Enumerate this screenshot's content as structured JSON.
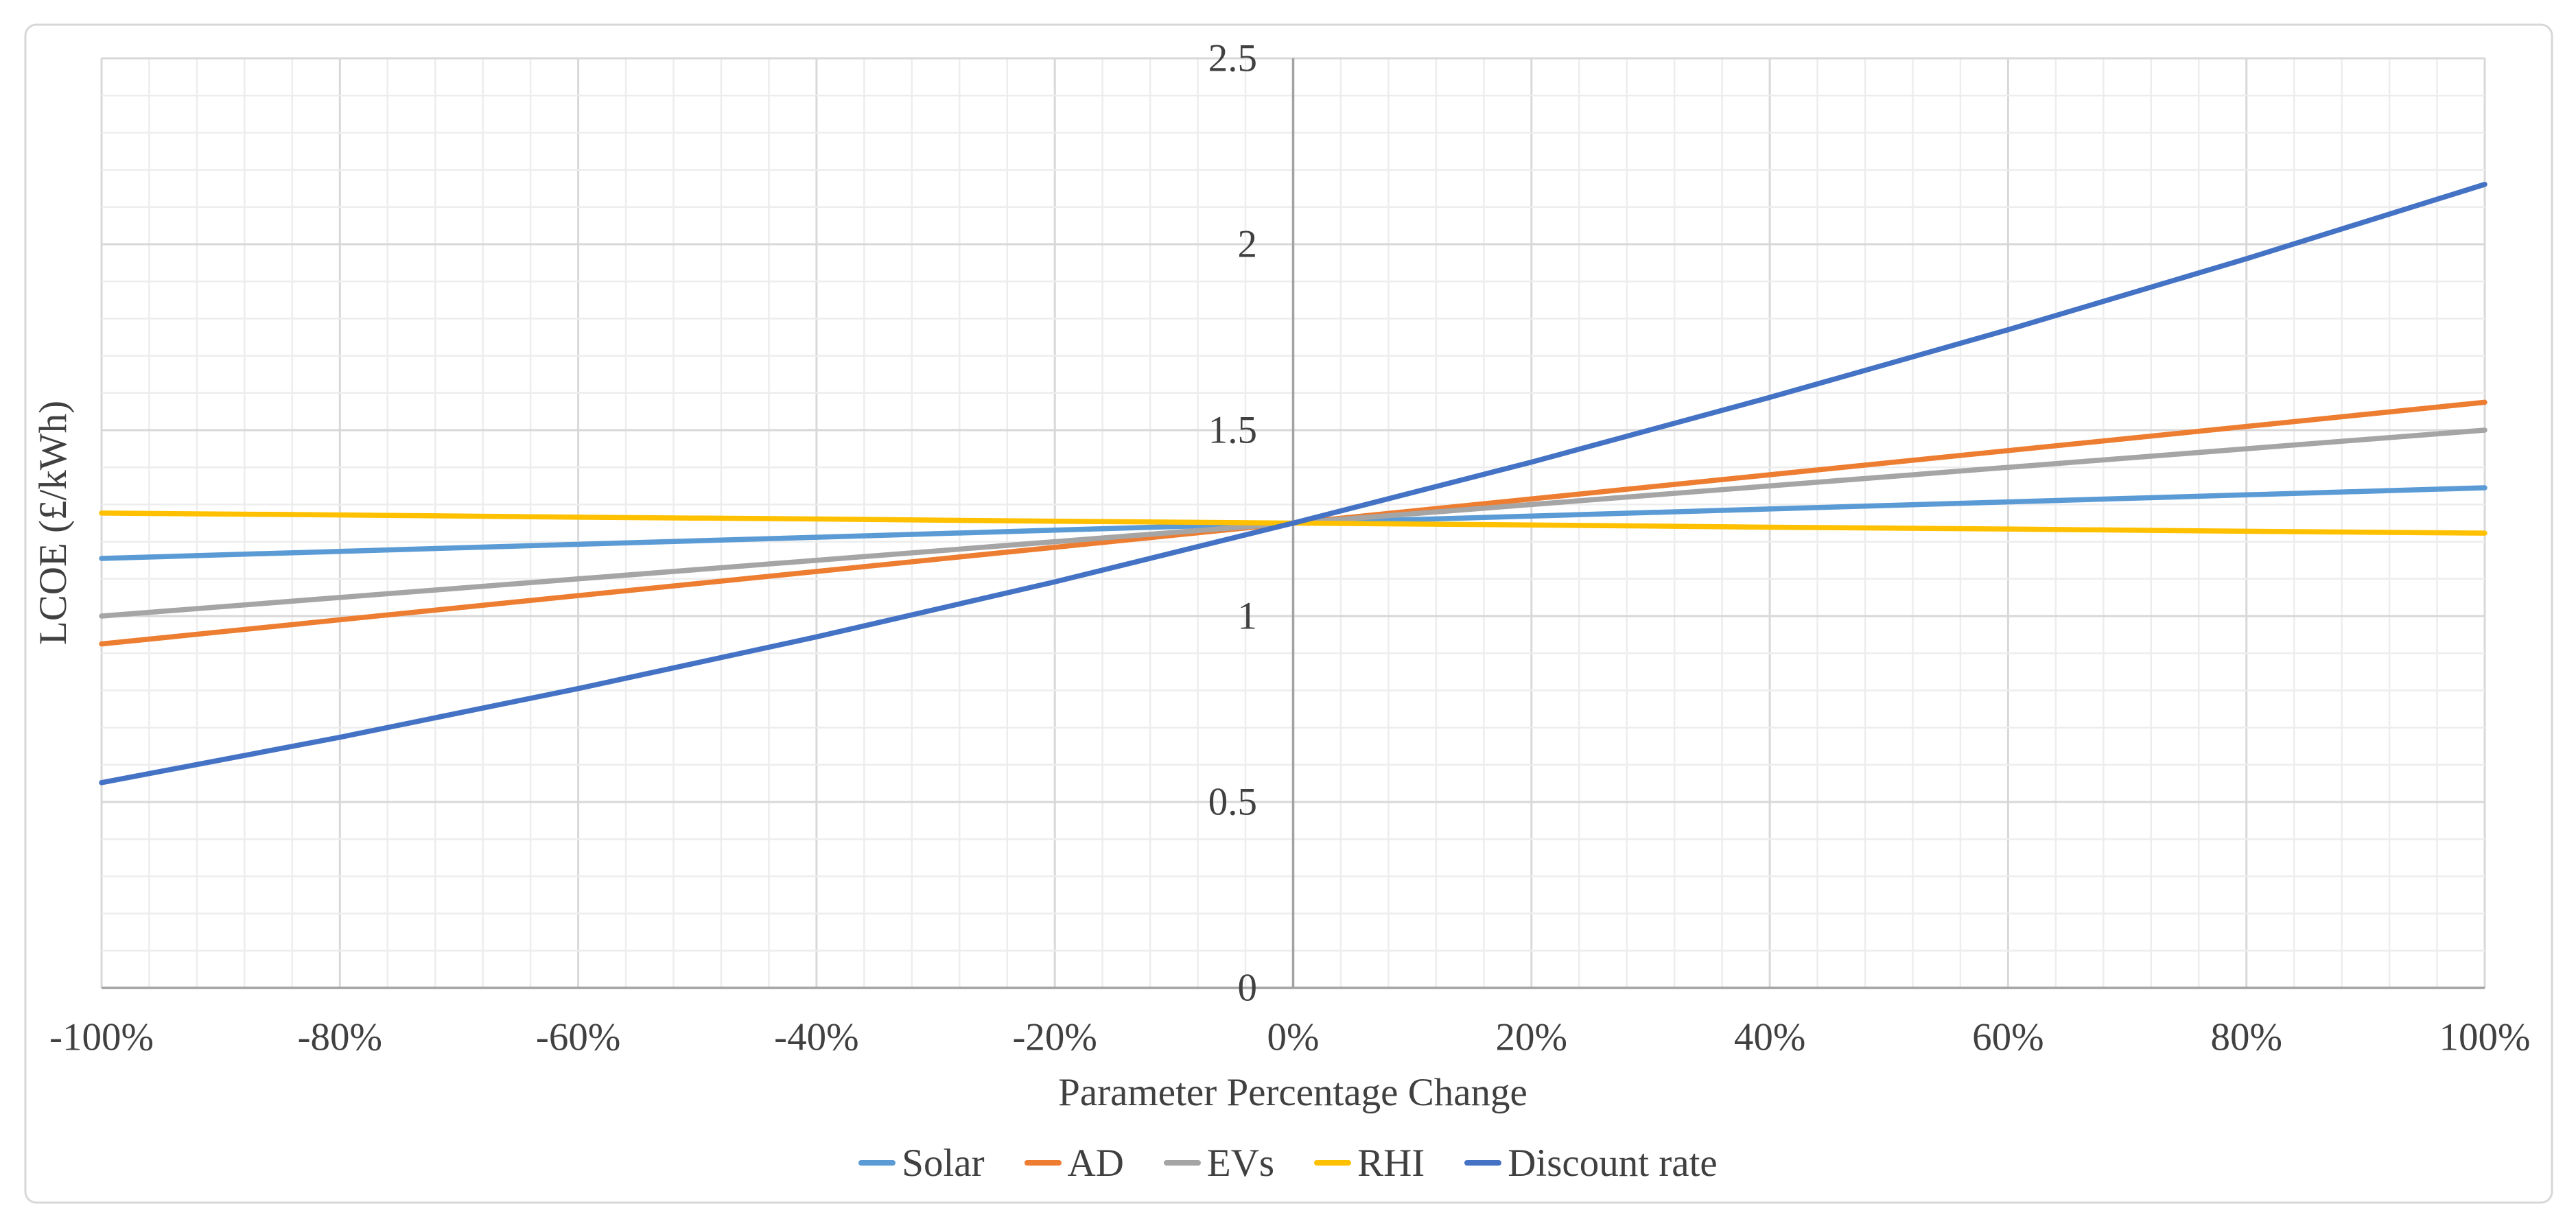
{
  "colors": {
    "text": "#404040",
    "axis_line": "#a2a2a2",
    "grid_major": "#d8d8d8",
    "grid_minor": "#ededed",
    "chart_border": "#d7d7d7",
    "background": "#ffffff"
  },
  "chart_data": {
    "type": "line",
    "title": "",
    "xlabel": "Parameter Percentage Change",
    "ylabel": "LCOE (£/kWh)",
    "x": [
      -100,
      -80,
      -60,
      -40,
      -20,
      0,
      20,
      40,
      60,
      80,
      100
    ],
    "x_tick_labels": [
      "-100%",
      "-80%",
      "-60%",
      "-40%",
      "-20%",
      "0%",
      "20%",
      "40%",
      "60%",
      "80%",
      "100%"
    ],
    "y_ticks": [
      0,
      0.5,
      1,
      1.5,
      2,
      2.5
    ],
    "y_tick_labels": [
      "0",
      "0.5",
      "1",
      "1.5",
      "2",
      "2.5"
    ],
    "xlim": [
      -100,
      100
    ],
    "ylim": [
      0,
      2.5
    ],
    "x_major_step": 20,
    "x_minor_step": 4,
    "y_major_step": 0.5,
    "y_minor_step": 0.1,
    "grid": "major+minor",
    "legend_position": "bottom",
    "series": [
      {
        "name": "Solar",
        "color": "#5B9BD5",
        "values": [
          1.155,
          1.174,
          1.193,
          1.212,
          1.231,
          1.25,
          1.269,
          1.288,
          1.307,
          1.326,
          1.345
        ]
      },
      {
        "name": "AD",
        "color": "#ED7D31",
        "values": [
          0.925,
          0.99,
          1.055,
          1.12,
          1.185,
          1.25,
          1.315,
          1.38,
          1.445,
          1.51,
          1.575
        ]
      },
      {
        "name": "EVs",
        "color": "#A5A5A5",
        "values": [
          1.0,
          1.05,
          1.1,
          1.15,
          1.2,
          1.25,
          1.3,
          1.35,
          1.4,
          1.45,
          1.5
        ]
      },
      {
        "name": "RHI",
        "color": "#FFC000",
        "values": [
          1.277,
          1.272,
          1.266,
          1.261,
          1.255,
          1.25,
          1.245,
          1.239,
          1.234,
          1.228,
          1.223
        ]
      },
      {
        "name": "Discount rate",
        "color": "#4472C4",
        "values": [
          0.552,
          0.674,
          0.805,
          0.944,
          1.092,
          1.25,
          1.414,
          1.588,
          1.77,
          1.961,
          2.161
        ]
      }
    ]
  }
}
